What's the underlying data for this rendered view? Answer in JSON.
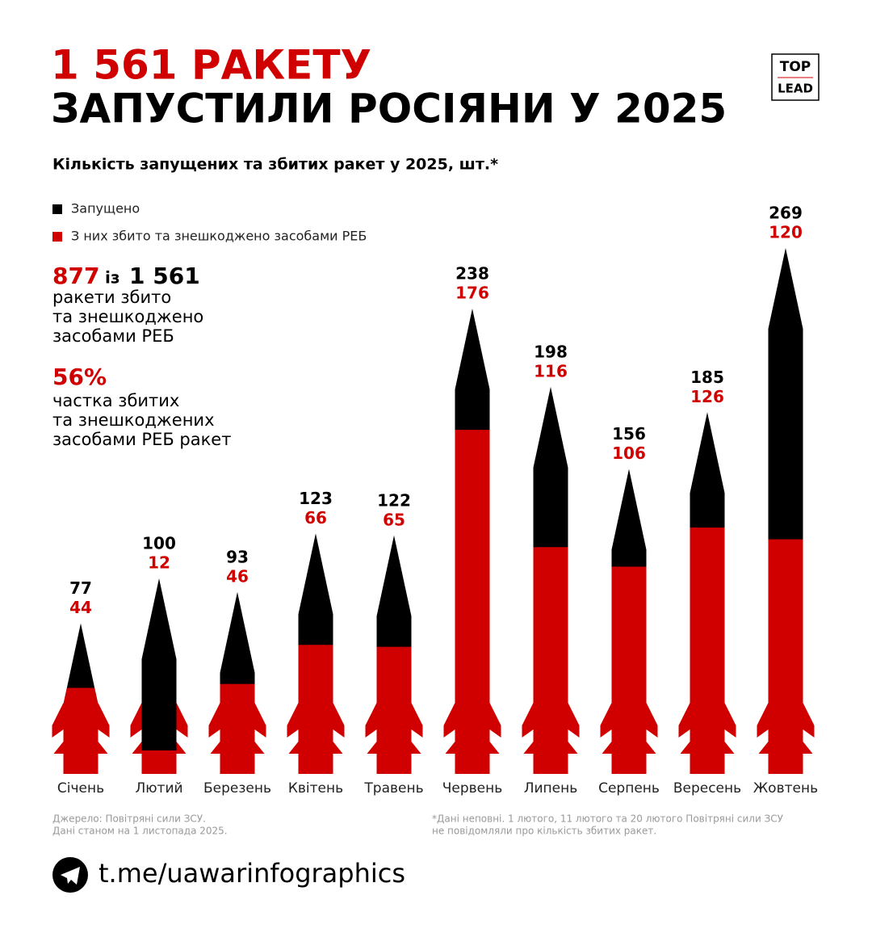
{
  "header": {
    "title_line1": "1 561 РАКЕТУ",
    "title_line2": "ЗАПУСТИЛИ РОСІЯНИ У 2025",
    "logo_top": "TOP",
    "logo_bottom": "LEAD"
  },
  "chart_data": {
    "type": "rocket-bar",
    "subtitle": "Кількість запущених та збитих ракет у 2025, шт.*",
    "categories": [
      "Січень",
      "Лютий",
      "Березень",
      "Квітень",
      "Травень",
      "Червень",
      "Липень",
      "Серпень",
      "Вересень",
      "Жовтень"
    ],
    "series": [
      {
        "name": "Запущено",
        "color": "#000000",
        "values": [
          77,
          100,
          93,
          123,
          122,
          238,
          198,
          156,
          185,
          269
        ]
      },
      {
        "name": "З них збито та знешкоджено засобами РЕБ",
        "color": "#d10000",
        "values": [
          44,
          12,
          46,
          66,
          65,
          176,
          116,
          106,
          126,
          120
        ]
      }
    ]
  },
  "stats": {
    "shot": "877",
    "of": "із",
    "total": "1 561",
    "shot_text": [
      "ракети збито",
      "та знешкоджено",
      "засобами РЕБ"
    ],
    "share": "56%",
    "share_text": [
      "частка збитих",
      "та знешкоджених",
      "засобами РЕБ ракет"
    ]
  },
  "footer": {
    "source": [
      "Джерело: Повітряні сили ЗСУ.",
      "Дані станом на 1 листопада 2025."
    ],
    "note": [
      "*Дані неповні. 1 лютого, 11 лютого та 20 лютого Повітряні сили ЗСУ",
      "не повідомляли про кількість збитих ракет."
    ],
    "link": "t.me/uawarinfographics"
  }
}
